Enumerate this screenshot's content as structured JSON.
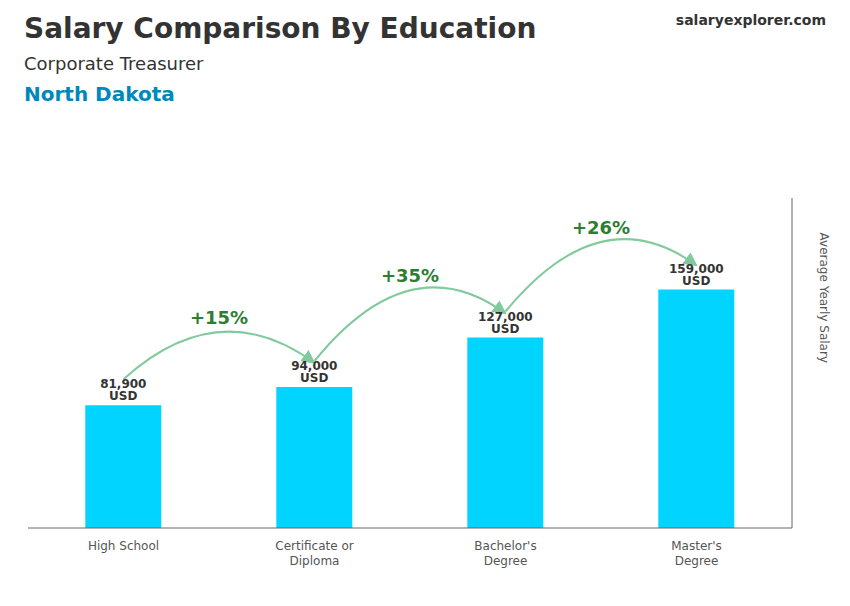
{
  "chart_data": {
    "type": "bar",
    "title": "Salary Comparison By Education",
    "subtitle": "Corporate Treasurer",
    "annotations": [
      {
        "text": "North Dakota"
      },
      {
        "text": "salaryexplorer.com"
      },
      {
        "text": "+15%",
        "from": "High School",
        "to": "Certificate or\nDiploma"
      },
      {
        "text": "+35%",
        "from": "Certificate or\nDiploma",
        "to": "Bachelor's\nDegree"
      },
      {
        "text": "+26%",
        "from": "Bachelor's\nDegree",
        "to": "Master's\nDegree"
      }
    ],
    "categories": [
      "High School",
      "Certificate or\nDiploma",
      "Bachelor's\nDegree",
      "Master's\nDegree"
    ],
    "values": [
      81900,
      94000,
      127000,
      159000
    ],
    "value_labels": [
      "81,900 USD",
      "94,000 USD",
      "127,000 USD",
      "159,000 USD"
    ],
    "data_labels": true,
    "color": "#00d4ff",
    "ylabel": "Average Yearly Salary",
    "ylim": [
      0,
      220000
    ],
    "yticks": [],
    "tick_labels": "x",
    "grid": false
  }
}
